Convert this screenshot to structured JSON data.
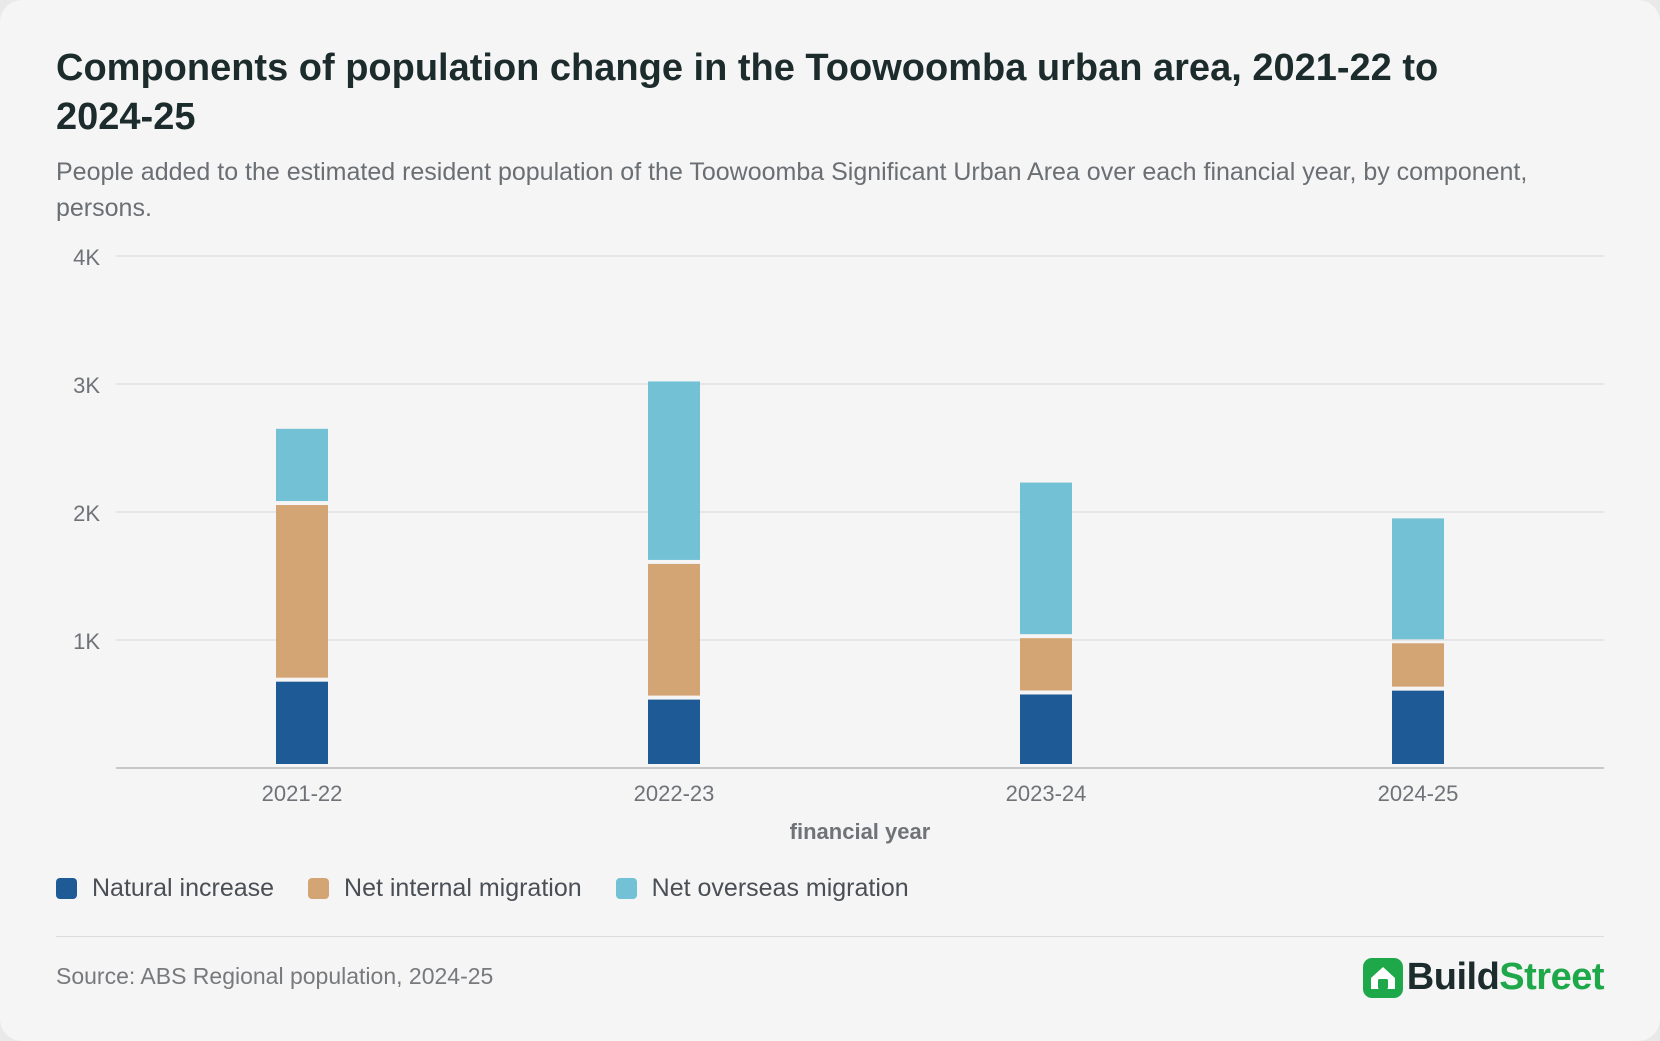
{
  "header": {
    "title": "Components of population change in the Toowoomba urban area, 2021-22 to 2024-25",
    "subtitle": "People added to the estimated resident population of the Toowoomba Significant Urban Area over each financial year, by component, persons."
  },
  "chart_data": {
    "type": "bar",
    "stacked": true,
    "categories": [
      "2021-22",
      "2022-23",
      "2023-24",
      "2024-25"
    ],
    "series": [
      {
        "name": "Natural increase",
        "color": "#1e5b96",
        "values": [
          690,
          550,
          590,
          620
        ]
      },
      {
        "name": "Net internal migration",
        "color": "#d4a574",
        "values": [
          1380,
          1060,
          440,
          370
        ]
      },
      {
        "name": "Net overseas migration",
        "color": "#72c1d5",
        "values": [
          580,
          1410,
          1200,
          960
        ]
      }
    ],
    "xlabel": "financial year",
    "ylabel": "",
    "ylim": [
      0,
      4000
    ],
    "yticks": [
      {
        "value": 1000,
        "label": "1K"
      },
      {
        "value": 2000,
        "label": "2K"
      },
      {
        "value": 3000,
        "label": "3K"
      },
      {
        "value": 4000,
        "label": "4K"
      }
    ],
    "grid": true,
    "legend_position": "bottom-left"
  },
  "footer": {
    "source": "Source: ABS Regional population, 2024-25",
    "brand_part1": "Build",
    "brand_part2": "Street",
    "brand_icon": "house-icon",
    "brand_color": "#1fa84a"
  }
}
